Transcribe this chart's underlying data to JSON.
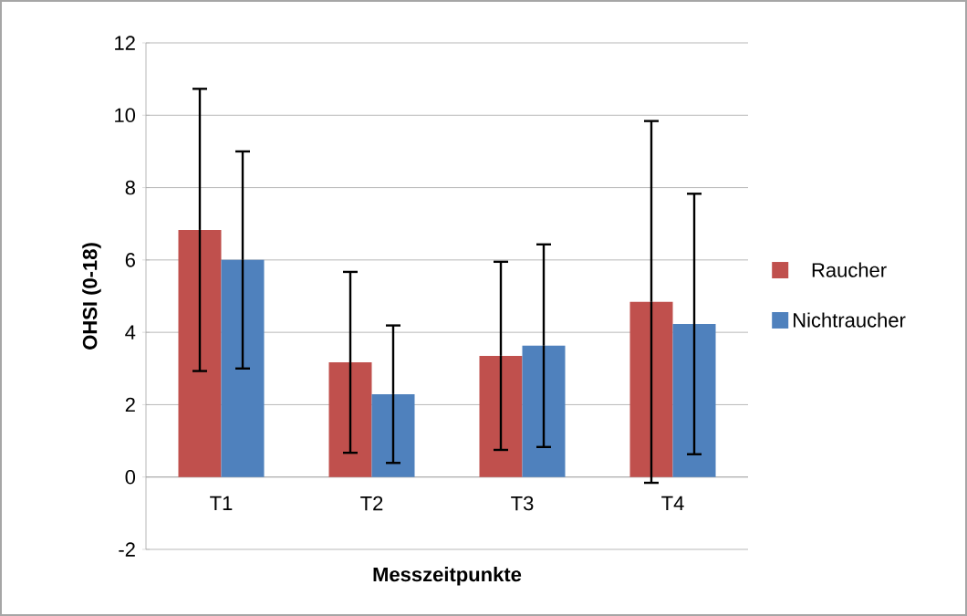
{
  "chart_data": {
    "type": "bar",
    "xlabel": "Messzeitpunkte",
    "ylabel": "OHSI (0-18)",
    "categories": [
      "T1",
      "T2",
      "T3",
      "T4"
    ],
    "series": [
      {
        "name": "Raucher",
        "color": "#c0504d",
        "values": [
          6.83,
          3.17,
          3.35,
          4.84
        ],
        "errors": [
          3.9,
          2.5,
          2.6,
          5.0
        ]
      },
      {
        "name": "Nichtraucher",
        "color": "#4f81bd",
        "values": [
          6.0,
          2.29,
          3.63,
          4.23
        ],
        "errors": [
          3.0,
          1.9,
          2.8,
          3.6
        ]
      }
    ],
    "ylim": [
      -2,
      12
    ],
    "yticks": [
      -2,
      0,
      2,
      4,
      6,
      8,
      10,
      12
    ],
    "grid": "y",
    "legend": "right"
  }
}
